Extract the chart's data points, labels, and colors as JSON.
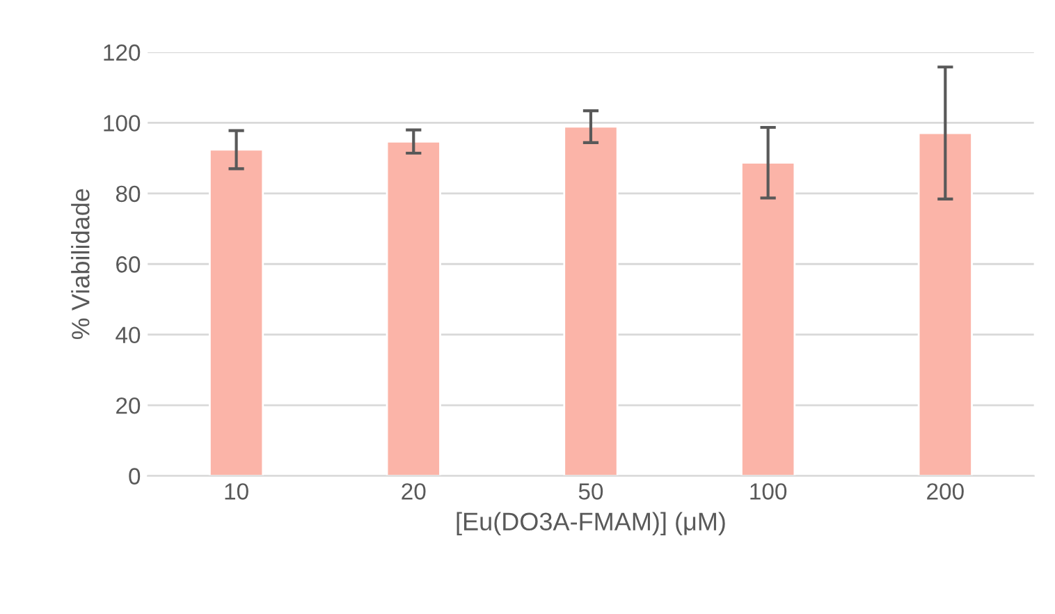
{
  "chart_data": {
    "type": "bar",
    "xlabel": "[Eu(DO3A-FMAM)] (μM)",
    "ylabel": "% Viabilidade",
    "categories": [
      "10",
      "20",
      "50",
      "100",
      "200"
    ],
    "values": [
      92.4,
      94.7,
      98.9,
      88.7,
      97.1
    ],
    "errors": [
      5.4,
      3.3,
      4.5,
      10,
      18.7
    ],
    "color": "#fbb4a8",
    "ylim": [
      0,
      120
    ],
    "yticks": [
      0,
      20,
      40,
      60,
      80,
      100,
      120
    ],
    "grid": "y",
    "legend": false
  }
}
